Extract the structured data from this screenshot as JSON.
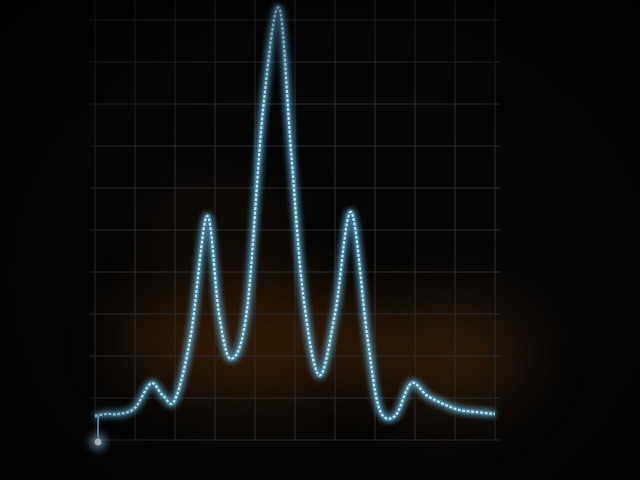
{
  "scene": {
    "subject": "oscilloscope",
    "trace_color": "#6fd0ff",
    "grid_color": "#2a2a2a",
    "grid_divisions": {
      "columns": 10,
      "rows": 10
    }
  },
  "chart_data": {
    "type": "line",
    "x": [
      0,
      0.3,
      0.6,
      1.0,
      1.4,
      1.7,
      2.0,
      2.4,
      2.8,
      3.1,
      3.4,
      3.8,
      4.2,
      4.6,
      4.9,
      5.2,
      5.6,
      6.0,
      6.4,
      6.8,
      7.1,
      7.5,
      7.9,
      8.3,
      8.7,
      9.1,
      9.5,
      10.0
    ],
    "series": [
      {
        "values": [
          0.0,
          0.05,
          0.05,
          0.2,
          0.8,
          0.5,
          0.4,
          2.0,
          4.9,
          2.5,
          1.4,
          2.6,
          7.5,
          10.0,
          6.5,
          3.0,
          1.0,
          2.5,
          5.0,
          2.0,
          0.2,
          0.0,
          0.8,
          0.5,
          0.3,
          0.15,
          0.1,
          0.05
        ]
      }
    ],
    "grid": true,
    "xlabel": "",
    "ylabel": "",
    "title": ""
  }
}
